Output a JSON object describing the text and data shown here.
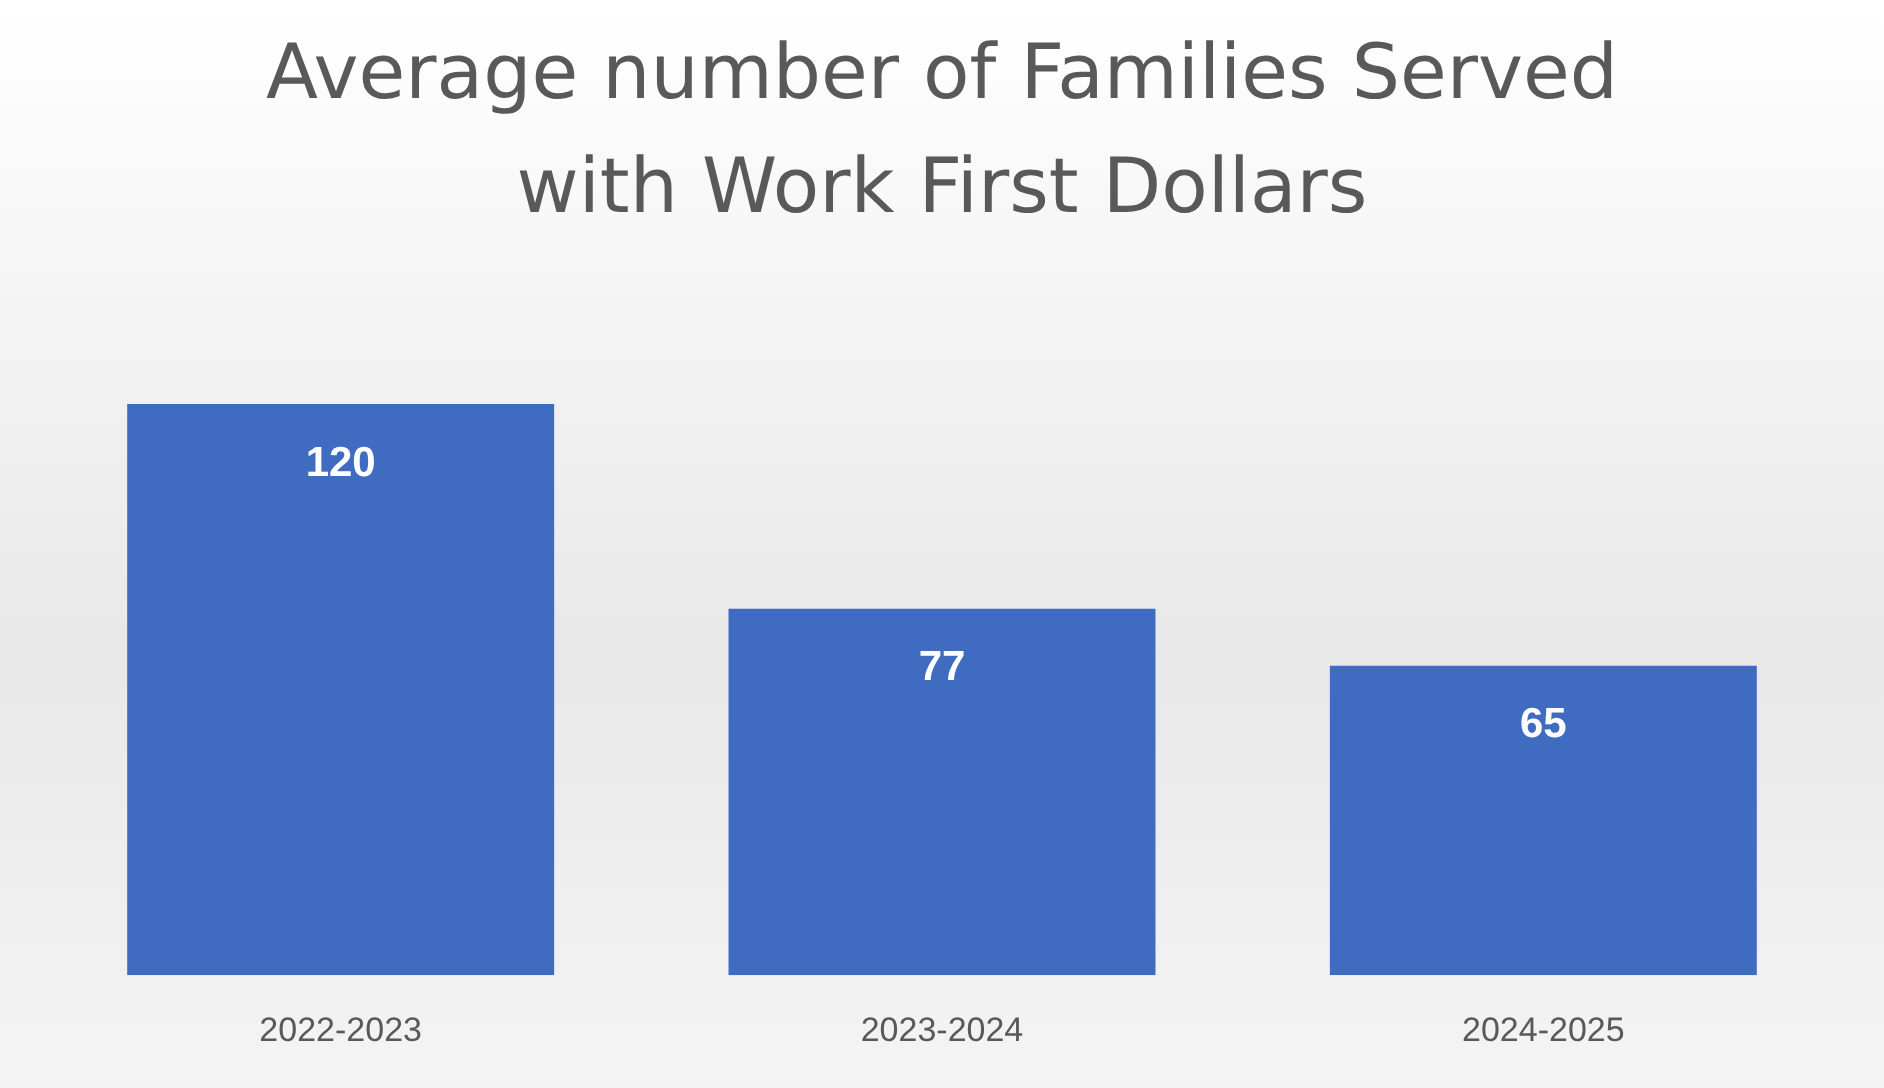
{
  "chart_data": {
    "type": "bar",
    "title": "Average number of Families Served with Work First Dollars",
    "categories": [
      "2022-2023",
      "2023-2024",
      "2024-2025"
    ],
    "values": [
      120,
      77,
      65
    ],
    "color": "#3f6bc0",
    "data_labels": true,
    "grid": false,
    "legend": false,
    "tick_labels": "x"
  }
}
